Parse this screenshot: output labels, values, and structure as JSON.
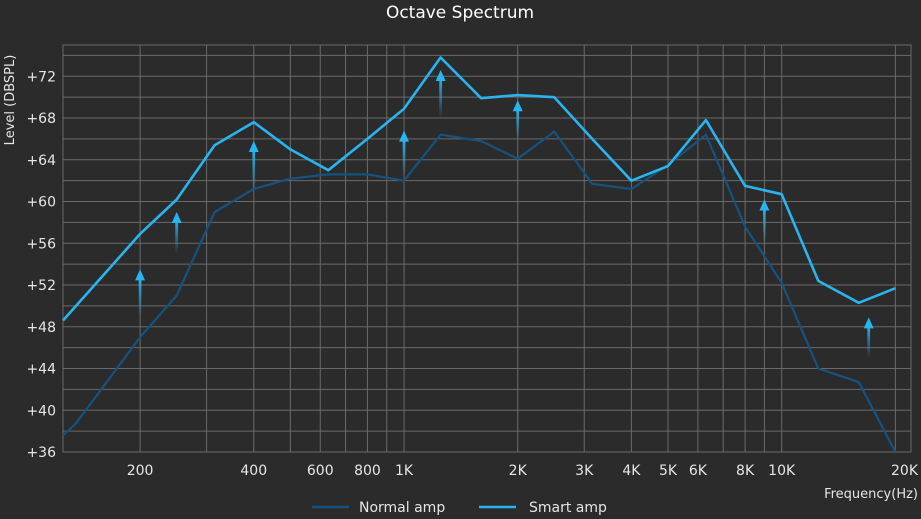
{
  "chart_data": {
    "type": "line",
    "title": "Octave Spectrum",
    "xlabel": "Frequency(Hz)",
    "ylabel": "Level (DBSPL)",
    "x_scale": "log",
    "xlim": [
      125,
      22000
    ],
    "ylim": [
      36,
      75
    ],
    "grid": true,
    "legend_position": "bottom-center",
    "x_ticks": [
      {
        "value": 200,
        "label": "200"
      },
      {
        "value": 400,
        "label": "400"
      },
      {
        "value": 600,
        "label": "600"
      },
      {
        "value": 800,
        "label": "800"
      },
      {
        "value": 1000,
        "label": "1K"
      },
      {
        "value": 2000,
        "label": "2K"
      },
      {
        "value": 3000,
        "label": "3K"
      },
      {
        "value": 4000,
        "label": "4K"
      },
      {
        "value": 5000,
        "label": "5K"
      },
      {
        "value": 6000,
        "label": "6K"
      },
      {
        "value": 8000,
        "label": "8K"
      },
      {
        "value": 10000,
        "label": "10K"
      },
      {
        "value": 20000,
        "label": "20K"
      }
    ],
    "y_ticks": [
      {
        "value": 36,
        "label": "+36"
      },
      {
        "value": 40,
        "label": "+40"
      },
      {
        "value": 44,
        "label": "+44"
      },
      {
        "value": 48,
        "label": "+48"
      },
      {
        "value": 52,
        "label": "+52"
      },
      {
        "value": 56,
        "label": "+56"
      },
      {
        "value": 60,
        "label": "+60"
      },
      {
        "value": 64,
        "label": "+64"
      },
      {
        "value": 68,
        "label": "+68"
      },
      {
        "value": 72,
        "label": "+72"
      }
    ],
    "series": [
      {
        "name": "Normal amp",
        "color": "#17527f",
        "points": [
          [
            125,
            37.6
          ],
          [
            135,
            38.7
          ],
          [
            200,
            47.0
          ],
          [
            250,
            51.0
          ],
          [
            315,
            59.0
          ],
          [
            400,
            61.2
          ],
          [
            500,
            62.2
          ],
          [
            630,
            62.6
          ],
          [
            800,
            62.6
          ],
          [
            1000,
            62.0
          ],
          [
            1250,
            66.4
          ],
          [
            1600,
            65.8
          ],
          [
            2000,
            64.1
          ],
          [
            2500,
            66.7
          ],
          [
            3150,
            61.7
          ],
          [
            4000,
            61.2
          ],
          [
            5000,
            63.5
          ],
          [
            6300,
            66.4
          ],
          [
            8000,
            57.6
          ],
          [
            10000,
            52.2
          ],
          [
            12500,
            44.0
          ],
          [
            16000,
            42.7
          ],
          [
            20000,
            36.0
          ]
        ]
      },
      {
        "name": "Smart amp",
        "color": "#29b4f0",
        "points": [
          [
            125,
            48.6
          ],
          [
            200,
            56.9
          ],
          [
            250,
            60.2
          ],
          [
            315,
            65.4
          ],
          [
            400,
            67.6
          ],
          [
            500,
            65.0
          ],
          [
            630,
            63.0
          ],
          [
            800,
            66.0
          ],
          [
            1000,
            68.9
          ],
          [
            1250,
            73.8
          ],
          [
            1600,
            69.9
          ],
          [
            2000,
            70.2
          ],
          [
            2500,
            70.0
          ],
          [
            3150,
            66.0
          ],
          [
            4000,
            62.0
          ],
          [
            5000,
            63.4
          ],
          [
            6300,
            67.8
          ],
          [
            8000,
            61.5
          ],
          [
            10000,
            60.7
          ],
          [
            12500,
            52.4
          ],
          [
            16000,
            50.3
          ],
          [
            20000,
            51.7
          ]
        ]
      }
    ],
    "arrows": [
      {
        "x": 200,
        "from": 49.0,
        "to": 53.5
      },
      {
        "x": 250,
        "from": 55.0,
        "to": 59.0
      },
      {
        "x": 400,
        "from": 61.0,
        "to": 65.8
      },
      {
        "x": 1000,
        "from": 62.5,
        "to": 66.8
      },
      {
        "x": 1250,
        "from": 68.0,
        "to": 72.6
      },
      {
        "x": 2000,
        "from": 66.0,
        "to": 69.7
      },
      {
        "x": 9000,
        "from": 56.0,
        "to": 60.2
      },
      {
        "x": 17000,
        "from": 45.0,
        "to": 48.9
      }
    ],
    "arrow_color": "#29b4f0"
  }
}
